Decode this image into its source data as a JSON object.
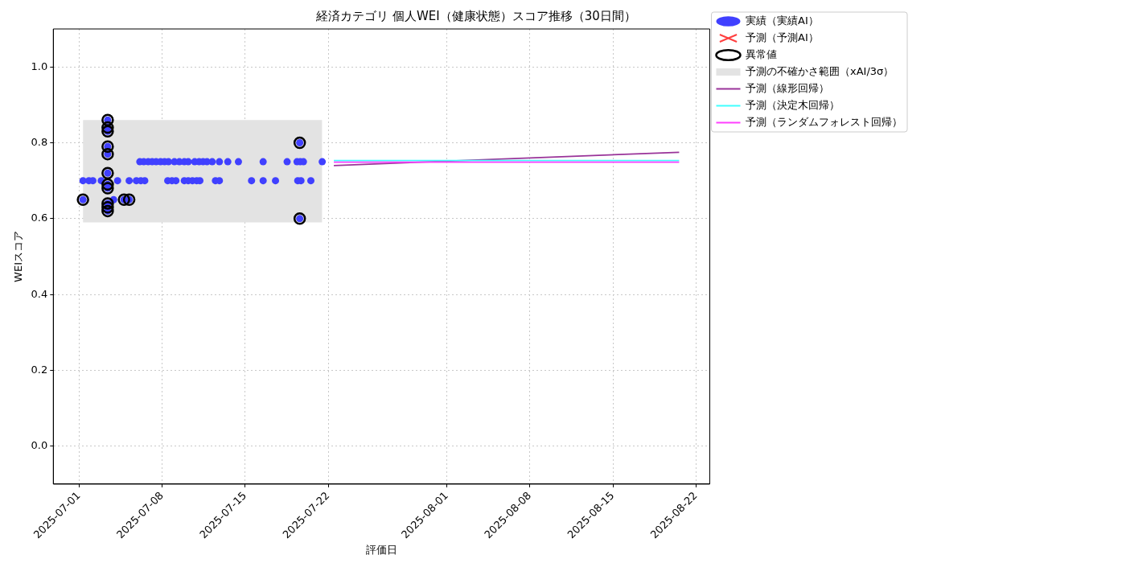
{
  "chart_data": {
    "type": "scatter",
    "title": "経済カテゴリ 個人WEI（健康状態）スコア推移（30日間）",
    "xlabel": "評価日",
    "ylabel": "WEIスコア",
    "xlim": [
      "2025-06-28T20:00",
      "2025-08-23T04:00"
    ],
    "xticks": [
      "2025-07-01",
      "2025-07-08",
      "2025-07-15",
      "2025-07-22",
      "2025-08-01",
      "2025-08-08",
      "2025-08-15",
      "2025-08-22"
    ],
    "ylim": [
      -0.1,
      1.1
    ],
    "yticks": [
      {
        "value": 0,
        "label": "0.0"
      },
      0.2,
      0.4,
      0.6,
      0.8,
      {
        "value": 1,
        "label": "1.0"
      }
    ],
    "grid": true,
    "legend": "top right",
    "series": [
      {
        "name": "実績（実績AI）",
        "color": "#4040ff",
        "marker": "circle",
        "x": [
          "2025-07-06T03:00",
          "2025-07-06T11:00",
          "2025-07-06T20:00",
          "2025-07-07T04:00",
          "2025-07-07T12:00",
          "2025-07-07T21:00",
          "2025-07-08T05:00",
          "2025-07-08T13:00",
          "2025-07-09T01:00",
          "2025-07-09T11:00",
          "2025-07-09T21:00",
          "2025-07-10T05:00",
          "2025-07-10T18:00",
          "2025-07-11T03:00",
          "2025-07-11T11:00",
          "2025-07-11T19:00",
          "2025-07-12T05:30",
          "2025-07-12T20:00",
          "2025-07-13T13:00",
          "2025-07-14T10:30",
          "2025-07-16T12:30",
          "2025-07-18T13:00",
          "2025-07-19T09:00",
          "2025-07-19T15:30",
          "2025-07-19T22:00",
          "2025-07-21T12:00",
          "2025-07-01T08:00",
          "2025-07-01T20:00",
          "2025-07-02T04:00",
          "2025-07-02T21:00",
          "2025-07-04T06:00",
          "2025-07-05T05:30",
          "2025-07-05T20:00",
          "2025-07-06T05:00",
          "2025-07-06T13:00",
          "2025-07-08T11:30",
          "2025-07-08T20:00",
          "2025-07-09T04:00",
          "2025-07-09T21:00",
          "2025-07-10T05:00",
          "2025-07-10T13:30",
          "2025-07-10T22:00",
          "2025-07-11T04:30",
          "2025-07-12T12:00",
          "2025-07-12T20:00",
          "2025-07-15T13:00",
          "2025-07-16T12:30",
          "2025-07-17T13:30",
          "2025-07-19T10:30",
          "2025-07-19T17:00",
          "2025-07-20T13:00",
          "2025-07-01T08:00",
          "2025-07-03T22:00",
          "2025-07-04T19:00",
          "2025-07-05T05:30",
          "2025-07-03T10:00",
          "2025-07-03T10:00",
          "2025-07-03T10:00",
          "2025-07-03T10:00",
          "2025-07-03T10:00",
          "2025-07-03T10:00",
          "2025-07-03T10:00",
          "2025-07-03T10:00",
          "2025-07-03T10:00",
          "2025-07-03T10:00",
          "2025-07-03T10:00",
          "2025-07-19T14:30",
          "2025-07-19T14:30"
        ],
        "values": [
          0.75,
          0.75,
          0.75,
          0.75,
          0.75,
          0.75,
          0.75,
          0.75,
          0.75,
          0.75,
          0.75,
          0.75,
          0.75,
          0.75,
          0.75,
          0.75,
          0.75,
          0.75,
          0.75,
          0.75,
          0.75,
          0.75,
          0.75,
          0.75,
          0.75,
          0.75,
          0.7,
          0.7,
          0.7,
          0.7,
          0.7,
          0.7,
          0.7,
          0.7,
          0.7,
          0.7,
          0.7,
          0.7,
          0.7,
          0.7,
          0.7,
          0.7,
          0.7,
          0.7,
          0.7,
          0.7,
          0.7,
          0.7,
          0.7,
          0.7,
          0.7,
          0.65,
          0.65,
          0.65,
          0.65,
          0.86,
          0.84,
          0.83,
          0.79,
          0.77,
          0.72,
          0.69,
          0.68,
          0.64,
          0.63,
          0.62,
          0.8,
          0.6
        ]
      },
      {
        "name": "予測（予測AI）",
        "color": "#ff4040",
        "marker": "cross"
      },
      {
        "name": "異常値",
        "color": "#000000",
        "marker": "circle",
        "x": [
          "2025-07-01T08:00",
          "2025-07-03T10:00",
          "2025-07-03T10:00",
          "2025-07-03T10:00",
          "2025-07-03T10:00",
          "2025-07-03T10:00",
          "2025-07-03T10:00",
          "2025-07-03T10:00",
          "2025-07-03T10:00",
          "2025-07-03T10:00",
          "2025-07-03T10:00",
          "2025-07-03T10:00",
          "2025-07-04T19:00",
          "2025-07-05T05:30",
          "2025-07-19T14:30",
          "2025-07-19T14:30"
        ],
        "values": [
          0.65,
          0.86,
          0.84,
          0.83,
          0.79,
          0.77,
          0.72,
          0.69,
          0.68,
          0.64,
          0.63,
          0.62,
          0.65,
          0.65,
          0.8,
          0.6
        ]
      },
      {
        "type": "area",
        "name": "予測の不確かさ範囲（xAI/3σ）",
        "color": "#e3e3e3",
        "x": [
          "2025-07-01T08:00",
          "2025-07-21T12:00"
        ],
        "values": [
          null,
          null
        ],
        "lower": [
          0.59,
          0.59
        ],
        "upper": [
          0.86,
          0.86
        ]
      },
      {
        "type": "line",
        "name": "予測（線形回帰）",
        "color": "#993399",
        "x": [
          "2025-07-22T11:30",
          "2025-08-20T14:00"
        ],
        "values": [
          0.74,
          0.775
        ]
      },
      {
        "type": "line",
        "name": "予測（決定木回帰）",
        "color": "#40ffff",
        "x": [
          "2025-07-22T11:30",
          "2025-08-20T14:00"
        ],
        "values": [
          0.753,
          0.753
        ]
      },
      {
        "type": "line",
        "name": "予測（ランダムフォレスト回帰）",
        "color": "#ff40ff",
        "x": [
          "2025-07-22T11:30",
          "2025-08-20T14:00"
        ],
        "values": [
          0.749,
          0.749
        ]
      }
    ]
  }
}
